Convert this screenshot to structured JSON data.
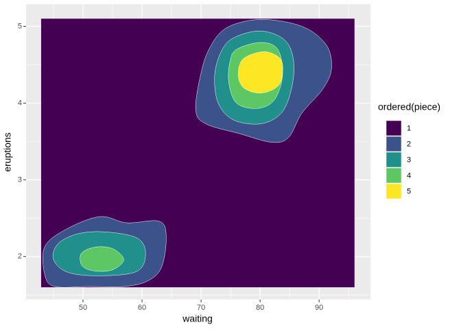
{
  "chart_data": {
    "type": "contour",
    "x_label": "waiting",
    "y_label": "eruptions",
    "legend_title": "ordered(piece)",
    "xlim": [
      40.35,
      98.7
    ],
    "ylim": [
      1.44,
      5.29
    ],
    "xticks": [
      50,
      60,
      70,
      80,
      90
    ],
    "yticks": [
      2,
      3,
      4,
      5
    ],
    "grid": true,
    "legend": "right",
    "series": [
      {
        "name": "1",
        "color": "#440154",
        "regions": [
          {
            "x": [
              42.9,
              96.0,
              96.0,
              42.9
            ],
            "y": [
              5.1,
              5.1,
              1.6,
              1.6
            ]
          }
        ]
      },
      {
        "name": "2",
        "color": "#3b528b",
        "regions": [
          {
            "x": [
              74.3,
              80.1,
              87.1,
              91.2,
              92.1,
              90.6,
              87.1,
              84.8,
              81.9,
              76.6,
              70.8,
              69.1,
              69.9,
              71.4
            ],
            "y": [
              4.98,
              5.09,
              5.0,
              4.76,
              4.45,
              4.18,
              3.87,
              3.55,
              3.49,
              3.6,
              3.73,
              3.91,
              4.36,
              4.71
            ]
          },
          {
            "x": [
              43.5,
              47.0,
              52.8,
              57.4,
              62.9,
              64.1,
              63.3,
              60.9,
              56.9,
              51.0,
              45.2,
              43.5
            ],
            "y": [
              2.125,
              2.35,
              2.52,
              2.44,
              2.46,
              2.26,
              1.86,
              1.68,
              1.61,
              1.61,
              1.61,
              1.77
            ]
          }
        ]
      },
      {
        "name": "3",
        "color": "#21908c",
        "regions": [
          {
            "x": [
              75.5,
              80.1,
              84.2,
              85.7,
              85.3,
              83.6,
              80.1,
              75.5,
              72.9,
              72.3,
              73.4
            ],
            "y": [
              4.85,
              4.94,
              4.82,
              4.54,
              4.18,
              3.87,
              3.73,
              3.78,
              4.0,
              4.36,
              4.67
            ]
          },
          {
            "x": [
              45.8,
              49.3,
              54.0,
              59.2,
              60.6,
              59.2,
              53.4,
              47.6,
              45.0
            ],
            "y": [
              2.17,
              2.3,
              2.32,
              2.24,
              2.04,
              1.81,
              1.75,
              1.79,
              1.96
            ]
          }
        ]
      },
      {
        "name": "4",
        "color": "#5dc863",
        "regions": [
          {
            "x": [
              76.0,
              80.1,
              83.0,
              83.8,
              82.4,
              79.5,
              76.0,
              74.7,
              74.9
            ],
            "y": [
              4.7,
              4.79,
              4.7,
              4.36,
              4.04,
              3.93,
              4.0,
              4.27,
              4.54
            ]
          },
          {
            "x": [
              49.7,
              52.2,
              55.1,
              56.9,
              55.1,
              52.2,
              49.9
            ],
            "y": [
              2.04,
              2.125,
              2.1,
              1.96,
              1.83,
              1.81,
              1.875
            ]
          }
        ]
      },
      {
        "name": "5",
        "color": "#fde725",
        "regions": [
          {
            "x": [
              77.2,
              80.7,
              83.4,
              83.8,
              83.0,
              80.1,
              77.2,
              76.3
            ],
            "y": [
              4.58,
              4.67,
              4.58,
              4.4,
              4.22,
              4.13,
              4.2,
              4.38
            ]
          }
        ]
      }
    ]
  }
}
